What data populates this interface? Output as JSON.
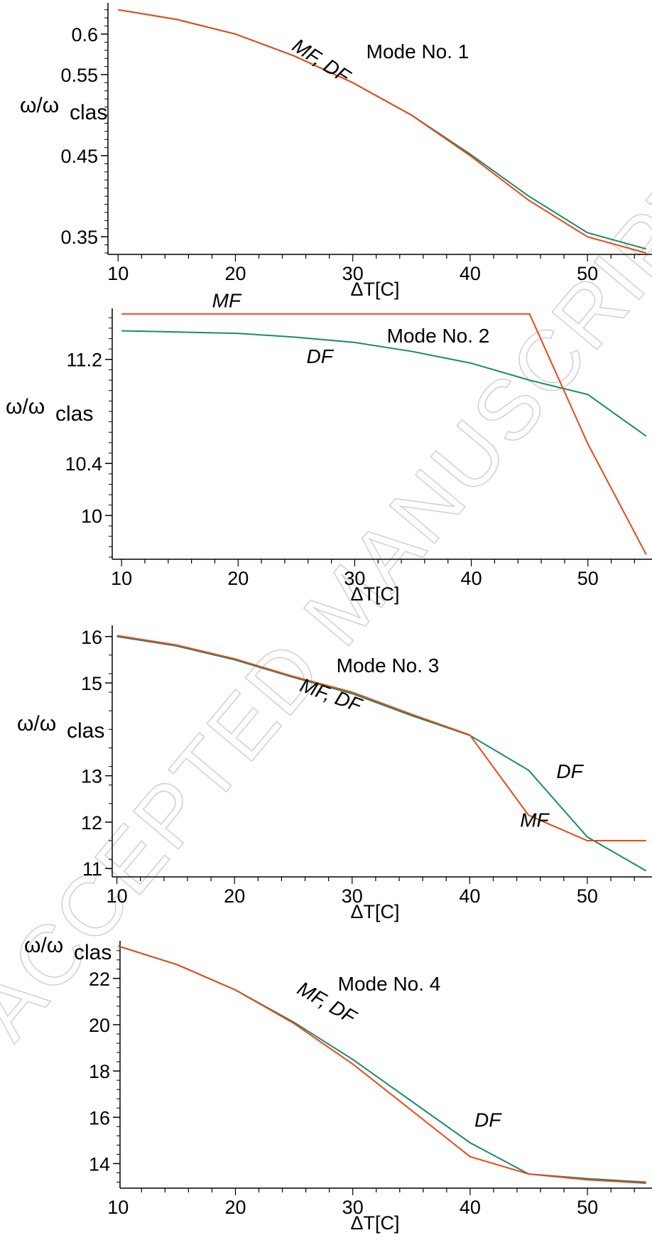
{
  "watermark": "ACCEPTED MANUSCRIPT",
  "chart_data": [
    {
      "type": "line",
      "annotation": "Mode No. 1",
      "xlabel": "ΔT[C]",
      "ylabel": "ω/ω",
      "ylabel_sub": "clas",
      "xlim": [
        9.5,
        55.5
      ],
      "ylim": [
        0.33,
        0.635
      ],
      "xticks": [
        10,
        20,
        30,
        40,
        50
      ],
      "yticks": [
        {
          "value": 0.6,
          "label": "0.6"
        },
        {
          "value": 0.55,
          "label": "0.55"
        },
        {
          "value": 0.45,
          "label": "0.45"
        },
        {
          "value": 0.35,
          "label": "0.35"
        }
      ],
      "x": [
        10,
        15,
        20,
        25,
        30,
        35,
        40,
        45,
        50,
        55
      ],
      "series": [
        {
          "id": "DF",
          "color": "#1a8a6e",
          "values": [
            0.63,
            0.618,
            0.6,
            0.573,
            0.54,
            0.5,
            0.452,
            0.4,
            0.355,
            0.335
          ]
        },
        {
          "id": "MF",
          "color": "#e8481a",
          "values": [
            0.63,
            0.618,
            0.6,
            0.573,
            0.54,
            0.5,
            0.45,
            0.395,
            0.35,
            0.33
          ]
        }
      ],
      "labels": [
        {
          "text": "MF, DF",
          "x": 27,
          "y": 0.56,
          "rotate": 33
        }
      ]
    },
    {
      "type": "line",
      "annotation": "Mode No. 2",
      "xlabel": "ΔT[C]",
      "ylabel": "ω/ω",
      "ylabel_sub": "clas",
      "xlim": [
        9.2,
        55.5
      ],
      "ylim": [
        9.68,
        11.57
      ],
      "xticks": [
        10,
        20,
        30,
        40,
        50
      ],
      "yticks": [
        {
          "value": 11.2,
          "label": "11.2"
        },
        {
          "value": 10.4,
          "label": "10.4"
        },
        {
          "value": 10.0,
          "label": "10"
        }
      ],
      "x": [
        10,
        15,
        20,
        25,
        30,
        35,
        40,
        45,
        50,
        55
      ],
      "series": [
        {
          "id": "DF",
          "color": "#1a8a6e",
          "values": [
            11.42,
            11.41,
            11.4,
            11.37,
            11.33,
            11.26,
            11.17,
            11.04,
            10.93,
            10.61
          ]
        },
        {
          "id": "MF",
          "color": "#e8481a",
          "x": [
            10,
            45,
            50,
            55
          ],
          "values": [
            11.55,
            11.55,
            10.55,
            9.7
          ]
        }
      ],
      "labels": [
        {
          "text": "MF",
          "x": 19,
          "y": 11.6,
          "rotate": 0
        },
        {
          "text": "DF",
          "x": 27,
          "y": 11.17,
          "rotate": 0
        }
      ]
    },
    {
      "type": "line",
      "annotation": "Mode No. 3",
      "xlabel": "ΔT[C]",
      "ylabel": "ω/ω",
      "ylabel_sub": "clas",
      "xlim": [
        9.6,
        55.5
      ],
      "ylim": [
        10.85,
        16.18
      ],
      "xticks": [
        10,
        20,
        30,
        40,
        50
      ],
      "yticks": [
        {
          "value": 16,
          "label": "16"
        },
        {
          "value": 15,
          "label": "15"
        },
        {
          "value": 13,
          "label": "13"
        },
        {
          "value": 12,
          "label": "12"
        },
        {
          "value": 11,
          "label": "11"
        }
      ],
      "x": [
        10,
        15,
        20,
        25,
        30,
        35,
        40,
        45,
        50,
        55
      ],
      "series": [
        {
          "id": "DF",
          "color": "#1a8a6e",
          "values": [
            16.0,
            15.8,
            15.5,
            15.12,
            14.77,
            14.3,
            13.87,
            13.12,
            11.68,
            10.95
          ]
        },
        {
          "id": "MF",
          "color": "#e8481a",
          "values": [
            16.02,
            15.82,
            15.52,
            15.14,
            14.8,
            14.33,
            13.88,
            12.15,
            11.6,
            11.6
          ]
        }
      ],
      "labels": [
        {
          "text": "MF, DF",
          "x": 28,
          "y": 14.6,
          "rotate": 20
        },
        {
          "text": "DF",
          "x": 48.5,
          "y": 12.95,
          "rotate": 0
        },
        {
          "text": "MF",
          "x": 45.5,
          "y": 11.9,
          "rotate": 0
        }
      ]
    },
    {
      "type": "line",
      "annotation": "Mode No. 4",
      "xlabel": "ΔT[C]",
      "ylabel": "ω/ω",
      "ylabel_sub": "clas",
      "xlim": [
        9.5,
        55.5
      ],
      "ylim": [
        13.0,
        23.5
      ],
      "xticks": [
        10,
        20,
        30,
        40,
        50
      ],
      "yticks": [
        {
          "value": 22,
          "label": "22"
        },
        {
          "value": 20,
          "label": "20"
        },
        {
          "value": 18,
          "label": "18"
        },
        {
          "value": 16,
          "label": "16"
        },
        {
          "value": 14,
          "label": "14"
        }
      ],
      "x": [
        10,
        15,
        20,
        25,
        30,
        35,
        40,
        45,
        50,
        55
      ],
      "series": [
        {
          "id": "DF",
          "color": "#1a8a6e",
          "values": [
            23.4,
            22.6,
            21.5,
            20.1,
            18.5,
            16.7,
            14.9,
            13.55,
            13.35,
            13.2
          ]
        },
        {
          "id": "MF",
          "color": "#e8481a",
          "values": [
            23.4,
            22.6,
            21.5,
            20.05,
            18.3,
            16.3,
            14.3,
            13.55,
            13.3,
            13.15
          ]
        }
      ],
      "labels": [
        {
          "text": "MF, DF",
          "x": 27.5,
          "y": 20.7,
          "rotate": 30
        },
        {
          "text": "DF",
          "x": 41.5,
          "y": 15.6,
          "rotate": 0
        }
      ]
    }
  ]
}
